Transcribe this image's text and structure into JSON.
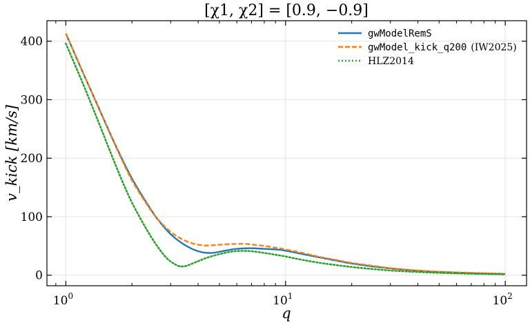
{
  "chart_data": {
    "type": "line",
    "title": "[χ1, χ2] = [0.9, −0.9]",
    "xlabel": "q",
    "ylabel": "v_kick [km/s]",
    "xscale": "log",
    "xlim": [
      0.82,
      125
    ],
    "ylim": [
      -18,
      435
    ],
    "grid": true,
    "legend_position": "top-right",
    "x_ticks": [
      {
        "base": "10",
        "exp": "0",
        "value": 1
      },
      {
        "base": "10",
        "exp": "1",
        "value": 10
      },
      {
        "base": "10",
        "exp": "2",
        "value": 100
      }
    ],
    "y_ticks": [
      0,
      100,
      200,
      300,
      400
    ],
    "series": [
      {
        "name": "gwModelRemS",
        "color": "#1f77b4",
        "style": "solid",
        "x": [
          1.0,
          1.2,
          1.4,
          1.6,
          1.8,
          2.0,
          2.3,
          2.6,
          3.0,
          3.4,
          3.8,
          4.2,
          4.6,
          5.0,
          5.5,
          6.0,
          6.6,
          7.2,
          8.0,
          9.0,
          10,
          12,
          14,
          17,
          20,
          25,
          30,
          40,
          50,
          70,
          100
        ],
        "y": [
          413,
          345,
          289,
          240,
          199,
          165,
          127,
          97,
          70,
          54,
          44,
          39,
          38,
          40,
          43,
          45,
          46,
          46,
          45,
          44,
          42,
          36,
          31,
          25,
          20,
          15,
          11.5,
          7.5,
          5.5,
          3.5,
          2
        ]
      },
      {
        "name_code": "gwModel_kick_q200",
        "name_ref": "(IW2025)",
        "color": "#ff7f0e",
        "style": "dashed",
        "x": [
          1.0,
          1.2,
          1.4,
          1.6,
          1.8,
          2.0,
          2.3,
          2.6,
          3.0,
          3.4,
          3.8,
          4.2,
          4.6,
          5.0,
          5.5,
          6.0,
          6.6,
          7.2,
          8.0,
          9.0,
          10,
          12,
          14,
          17,
          20,
          25,
          30,
          40,
          50,
          70,
          100
        ],
        "y": [
          413,
          345,
          288,
          239,
          197,
          162,
          125,
          97,
          74,
          61,
          54,
          51,
          51,
          52,
          53,
          53.5,
          53.5,
          52,
          50,
          47,
          44,
          38,
          32,
          26,
          21,
          16,
          12,
          8,
          6,
          4,
          2.5
        ]
      },
      {
        "name": "HLZ2014",
        "color": "#2ca02c",
        "style": "dotted",
        "x": [
          1.0,
          1.2,
          1.4,
          1.6,
          1.8,
          2.0,
          2.3,
          2.6,
          2.9,
          3.2,
          3.4,
          3.6,
          4.0,
          4.4,
          5.0,
          5.6,
          6.2,
          7.0,
          8.0,
          9.0,
          10,
          12,
          15,
          20,
          25,
          30,
          40,
          50,
          70,
          100
        ],
        "y": [
          396,
          326,
          264,
          209,
          162,
          124,
          82,
          50,
          28,
          17,
          15,
          17,
          24,
          30,
          36,
          40,
          41.5,
          41,
          38,
          35,
          32,
          26,
          20,
          14,
          10.5,
          8,
          5.5,
          4,
          2.5,
          1.5
        ]
      }
    ]
  }
}
